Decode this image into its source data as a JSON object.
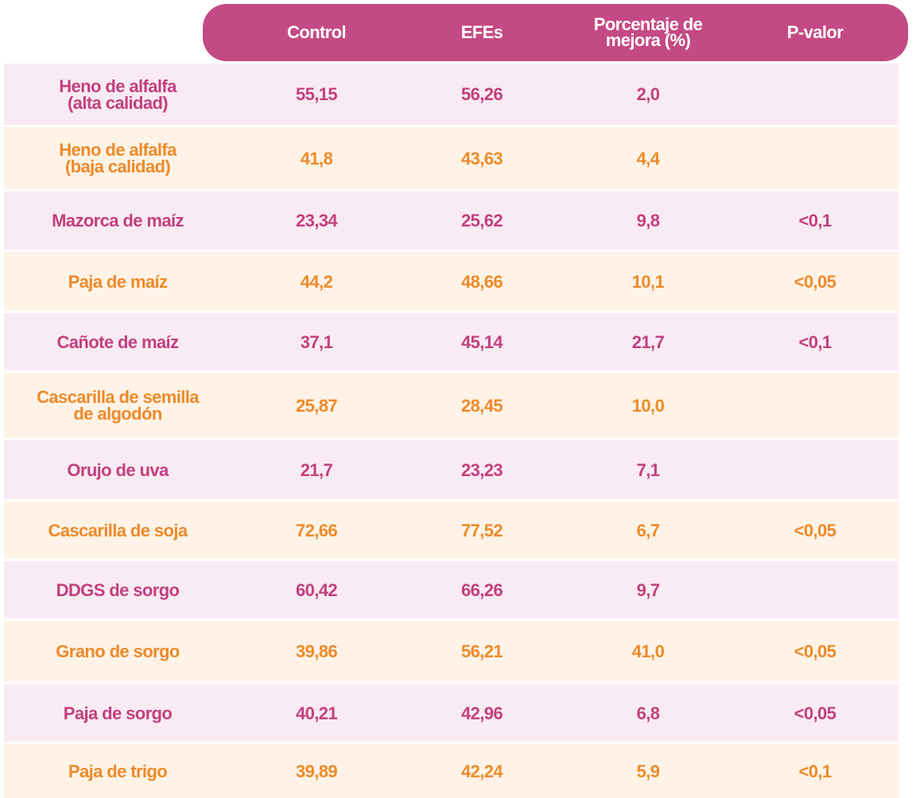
{
  "table": {
    "header": [
      "Control",
      "EFEs",
      [
        "Porcentaje de",
        "mejora (%)"
      ],
      "P-valor"
    ],
    "rows": [
      [
        [
          "Heno de alfalfa",
          "(alta calidad)"
        ],
        "55,15",
        "56,26",
        "2,0",
        null
      ],
      [
        [
          "Heno de alfalfa",
          "(baja calidad)"
        ],
        "41,8",
        "43,63",
        "4,4",
        null
      ],
      [
        [
          "Mazorca de maíz"
        ],
        "23,34",
        "25,62",
        "9,8",
        "<0,1"
      ],
      [
        [
          "Paja de maíz"
        ],
        "44,2",
        "48,66",
        "10,1",
        "<0,05"
      ],
      [
        [
          "Cañote de maíz"
        ],
        "37,1",
        "45,14",
        "21,7",
        "<0,1"
      ],
      [
        [
          "Cascarilla de semilla",
          "de algodón"
        ],
        "25,87",
        "28,45",
        "10,0",
        null
      ],
      [
        [
          "Orujo de uva"
        ],
        "21,7",
        "23,23",
        "7,1",
        null
      ],
      [
        [
          "Cascarilla de soja"
        ],
        "72,66",
        "77,52",
        "6,7",
        "<0,05"
      ],
      [
        [
          "DDGS de sorgo"
        ],
        "60,42",
        "66,26",
        "9,7",
        null
      ],
      [
        [
          "Grano de sorgo"
        ],
        "39,86",
        "56,21",
        "41,0",
        "<0,05"
      ],
      [
        [
          "Paja de sorgo"
        ],
        "40,21",
        "42,96",
        "6,8",
        "<0,05"
      ],
      [
        [
          "Paja de trigo"
        ],
        "39,89",
        "42,24",
        "5,9",
        "<0,1"
      ]
    ]
  }
}
